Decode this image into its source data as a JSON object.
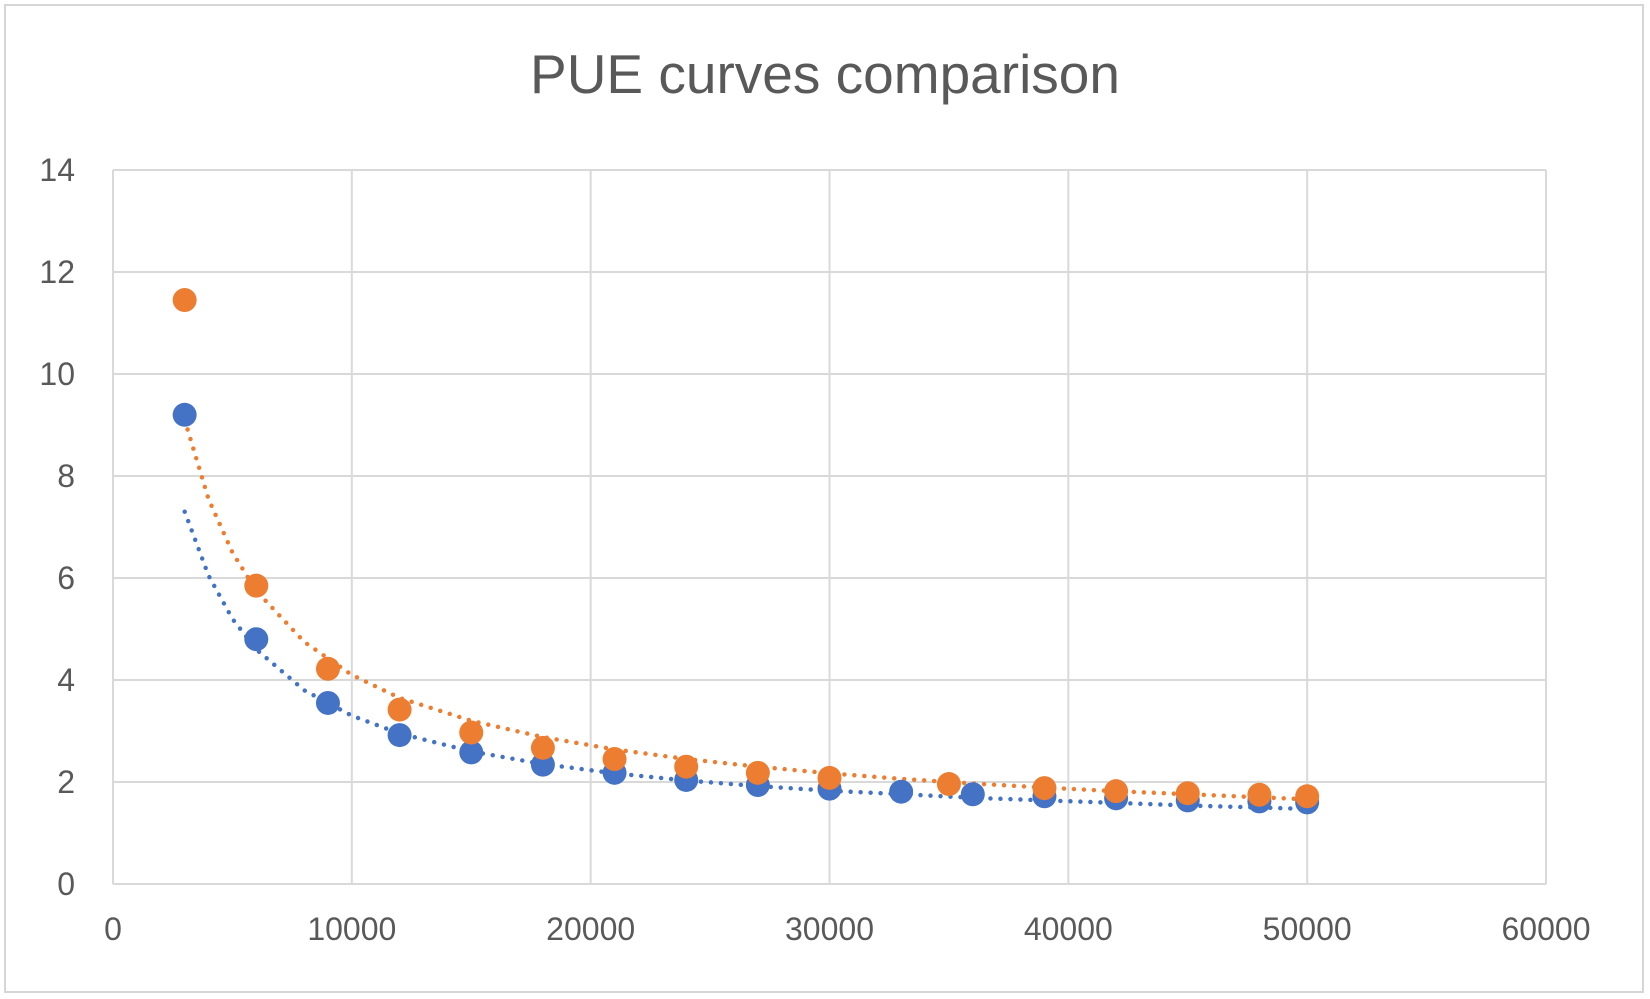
{
  "chart_data": {
    "type": "scatter",
    "title": "PUE curves comparison",
    "xlabel": "",
    "ylabel": "",
    "xlim": [
      0,
      60000
    ],
    "ylim": [
      0,
      14
    ],
    "xticks": [
      0,
      10000,
      20000,
      30000,
      40000,
      50000,
      60000
    ],
    "yticks": [
      0,
      2,
      4,
      6,
      8,
      10,
      12,
      14
    ],
    "grid": true,
    "legend": "none",
    "series": [
      {
        "color": "#4472C4",
        "trendline": "power",
        "points": [
          [
            3000,
            9.2
          ],
          [
            6000,
            4.8
          ],
          [
            9000,
            3.55
          ],
          [
            12000,
            2.92
          ],
          [
            15000,
            2.58
          ],
          [
            18000,
            2.34
          ],
          [
            21000,
            2.18
          ],
          [
            24000,
            2.04
          ],
          [
            27000,
            1.94
          ],
          [
            30000,
            1.87
          ],
          [
            33000,
            1.81
          ],
          [
            36000,
            1.76
          ],
          [
            39000,
            1.72
          ],
          [
            42000,
            1.68
          ],
          [
            45000,
            1.64
          ],
          [
            48000,
            1.62
          ],
          [
            50000,
            1.6
          ]
        ],
        "trend": [
          [
            3000,
            7.3
          ],
          [
            4000,
            6.05
          ],
          [
            5000,
            5.2
          ],
          [
            6000,
            4.6
          ],
          [
            8000,
            3.8
          ],
          [
            10000,
            3.3
          ],
          [
            12000,
            2.95
          ],
          [
            15000,
            2.6
          ],
          [
            18000,
            2.35
          ],
          [
            21000,
            2.17
          ],
          [
            24000,
            2.03
          ],
          [
            27000,
            1.92
          ],
          [
            30000,
            1.83
          ],
          [
            33000,
            1.76
          ],
          [
            36000,
            1.69
          ],
          [
            39000,
            1.64
          ],
          [
            42000,
            1.59
          ],
          [
            45000,
            1.54
          ],
          [
            48000,
            1.5
          ],
          [
            50000,
            1.47
          ]
        ]
      },
      {
        "color": "#ED7D31",
        "trendline": "power",
        "points": [
          [
            3000,
            11.45
          ],
          [
            6000,
            5.85
          ],
          [
            9000,
            4.22
          ],
          [
            12000,
            3.42
          ],
          [
            15000,
            2.97
          ],
          [
            18000,
            2.67
          ],
          [
            21000,
            2.45
          ],
          [
            24000,
            2.3
          ],
          [
            27000,
            2.18
          ],
          [
            30000,
            2.08
          ],
          [
            35000,
            1.96
          ],
          [
            39000,
            1.88
          ],
          [
            42000,
            1.82
          ],
          [
            45000,
            1.78
          ],
          [
            48000,
            1.75
          ],
          [
            50000,
            1.72
          ]
        ],
        "trend": [
          [
            3000,
            9.1
          ],
          [
            4000,
            7.55
          ],
          [
            5000,
            6.5
          ],
          [
            6000,
            5.75
          ],
          [
            8000,
            4.75
          ],
          [
            10000,
            4.1
          ],
          [
            12000,
            3.65
          ],
          [
            15000,
            3.2
          ],
          [
            18000,
            2.88
          ],
          [
            21000,
            2.64
          ],
          [
            24000,
            2.45
          ],
          [
            27000,
            2.3
          ],
          [
            30000,
            2.17
          ],
          [
            33000,
            2.06
          ],
          [
            36000,
            1.97
          ],
          [
            39000,
            1.89
          ],
          [
            42000,
            1.82
          ],
          [
            45000,
            1.76
          ],
          [
            48000,
            1.7
          ],
          [
            50000,
            1.66
          ]
        ]
      }
    ]
  }
}
